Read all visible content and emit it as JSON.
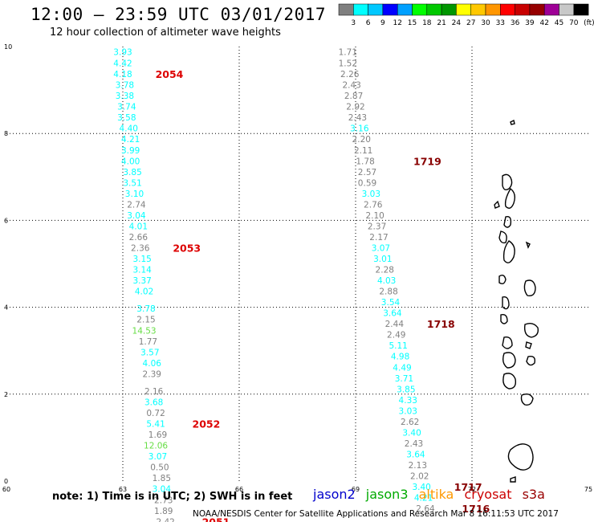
{
  "header": {
    "title": "12:00 — 23:59 UTC 03/01/2017",
    "subtitle": "12 hour collection of altimeter wave heights"
  },
  "colorbar": {
    "labels": [
      "3",
      "6",
      "9",
      "12",
      "15",
      "18",
      "21",
      "24",
      "27",
      "30",
      "33",
      "36",
      "39",
      "42",
      "45",
      "70"
    ],
    "unit": "(ft)",
    "colors": [
      "#7f7f7f",
      "#00ffff",
      "#00c8ff",
      "#0000ff",
      "#00a0ff",
      "#00ff00",
      "#00c800",
      "#009600",
      "#ffff00",
      "#ffc800",
      "#ff9600",
      "#ff0000",
      "#c80000",
      "#960000",
      "#9e0096",
      "#c8c8c8",
      "#000000"
    ]
  },
  "footer": {
    "note": "note: 1) Time is in UTC; 2) SWH is in feet",
    "credit": "NOAA/NESDIS Center for Satellite Applications and Research   Mar  8 16:11:53 UTC 2017",
    "satellites": [
      {
        "name": "jason2",
        "color": "#0000cc"
      },
      {
        "name": "jason3",
        "color": "#00aa00"
      },
      {
        "name": "altika",
        "color": "#ff9900"
      },
      {
        "name": "cryosat",
        "color": "#cc0000"
      },
      {
        "name": "s3a",
        "color": "#990000"
      }
    ]
  },
  "chart_data": {
    "type": "scatter",
    "title": "",
    "xlabel": "",
    "ylabel": "",
    "xlim": [
      60,
      75
    ],
    "ylim": [
      0,
      10
    ],
    "x_ticks": [
      60,
      63,
      66,
      69,
      72,
      75
    ],
    "y_ticks": [
      0,
      2,
      4,
      6,
      8,
      10
    ],
    "grid": true,
    "series": [
      {
        "track": "left",
        "points": [
          {
            "x": 63.0,
            "y": 9.88,
            "v": "3.93",
            "c": "#00ffff"
          },
          {
            "x": 63.0,
            "y": 9.62,
            "v": "4.42",
            "c": "#00ffff"
          },
          {
            "x": 63.0,
            "y": 9.37,
            "v": "4.18",
            "c": "#00ffff"
          },
          {
            "x": 63.05,
            "y": 9.12,
            "v": "3.78",
            "c": "#00ffff"
          },
          {
            "x": 63.05,
            "y": 8.87,
            "v": "3.38",
            "c": "#00ffff"
          },
          {
            "x": 63.1,
            "y": 8.62,
            "v": "3.74",
            "c": "#00ffff"
          },
          {
            "x": 63.1,
            "y": 8.37,
            "v": "3.58",
            "c": "#00ffff"
          },
          {
            "x": 63.15,
            "y": 8.12,
            "v": "4.40",
            "c": "#00ffff"
          },
          {
            "x": 63.2,
            "y": 7.87,
            "v": "4.21",
            "c": "#00ffff"
          },
          {
            "x": 63.2,
            "y": 7.62,
            "v": "3.99",
            "c": "#00ffff"
          },
          {
            "x": 63.2,
            "y": 7.37,
            "v": "4.00",
            "c": "#00ffff"
          },
          {
            "x": 63.25,
            "y": 7.12,
            "v": "3.85",
            "c": "#00ffff"
          },
          {
            "x": 63.25,
            "y": 6.87,
            "v": "3.51",
            "c": "#00ffff"
          },
          {
            "x": 63.3,
            "y": 6.62,
            "v": "3.10",
            "c": "#00ffff"
          },
          {
            "x": 63.35,
            "y": 6.37,
            "v": "2.74",
            "c": "#808080"
          },
          {
            "x": 63.35,
            "y": 6.12,
            "v": "3.04",
            "c": "#00ffff"
          },
          {
            "x": 63.4,
            "y": 5.87,
            "v": "4.01",
            "c": "#00ffff"
          },
          {
            "x": 63.4,
            "y": 5.62,
            "v": "2.66",
            "c": "#808080"
          },
          {
            "x": 63.45,
            "y": 5.37,
            "v": "2.36",
            "c": "#808080"
          },
          {
            "x": 63.5,
            "y": 5.12,
            "v": "3.15",
            "c": "#00ffff"
          },
          {
            "x": 63.5,
            "y": 4.87,
            "v": "3.14",
            "c": "#00ffff"
          },
          {
            "x": 63.5,
            "y": 4.62,
            "v": "3.37",
            "c": "#00ffff"
          },
          {
            "x": 63.55,
            "y": 4.37,
            "v": "4.02",
            "c": "#00ffff"
          },
          {
            "x": 63.6,
            "y": 3.97,
            "v": "3.78",
            "c": "#00ffff"
          },
          {
            "x": 63.6,
            "y": 3.72,
            "v": "2.15",
            "c": "#808080"
          },
          {
            "x": 63.55,
            "y": 3.47,
            "v": "14.53",
            "c": "#66dd44"
          },
          {
            "x": 63.65,
            "y": 3.22,
            "v": "1.77",
            "c": "#808080"
          },
          {
            "x": 63.7,
            "y": 2.97,
            "v": "3.57",
            "c": "#00ffff"
          },
          {
            "x": 63.75,
            "y": 2.72,
            "v": "4.06",
            "c": "#00ffff"
          },
          {
            "x": 63.75,
            "y": 2.47,
            "v": "2.39",
            "c": "#808080"
          },
          {
            "x": 63.8,
            "y": 2.07,
            "v": "2.16",
            "c": "#808080"
          },
          {
            "x": 63.8,
            "y": 1.82,
            "v": "3.68",
            "c": "#00ffff"
          },
          {
            "x": 63.85,
            "y": 1.57,
            "v": "0.72",
            "c": "#808080"
          },
          {
            "x": 63.85,
            "y": 1.32,
            "v": "5.41",
            "c": "#00ffff"
          },
          {
            "x": 63.9,
            "y": 1.07,
            "v": "1.69",
            "c": "#808080"
          },
          {
            "x": 63.85,
            "y": 0.82,
            "v": "12.06",
            "c": "#66dd44"
          },
          {
            "x": 63.9,
            "y": 0.57,
            "v": "3.07",
            "c": "#00ffff"
          },
          {
            "x": 63.95,
            "y": 0.32,
            "v": "0.50",
            "c": "#808080"
          },
          {
            "x": 64.0,
            "y": 0.07,
            "v": "1.85",
            "c": "#808080"
          },
          {
            "x": 64.0,
            "y": -0.18,
            "v": "3.04",
            "c": "#00ffff"
          },
          {
            "x": 64.05,
            "y": -0.43,
            "v": "2.73",
            "c": "#808080"
          },
          {
            "x": 64.05,
            "y": -0.68,
            "v": "1.89",
            "c": "#808080"
          },
          {
            "x": 64.1,
            "y": -0.93,
            "v": "2.42",
            "c": "#808080"
          }
        ],
        "times": [
          {
            "x": 64.2,
            "y": 9.37,
            "v": "2054",
            "c": "#dd0000"
          },
          {
            "x": 64.65,
            "y": 5.37,
            "v": "2053",
            "c": "#dd0000"
          },
          {
            "x": 65.15,
            "y": 1.32,
            "v": "2052",
            "c": "#dd0000"
          },
          {
            "x": 65.4,
            "y": -0.93,
            "v": "2051",
            "c": "#dd0000"
          }
        ]
      },
      {
        "track": "right",
        "points": [
          {
            "x": 68.8,
            "y": 9.88,
            "v": "1.71",
            "c": "#808080"
          },
          {
            "x": 68.8,
            "y": 9.62,
            "v": "1.52",
            "c": "#808080"
          },
          {
            "x": 68.85,
            "y": 9.37,
            "v": "2.26",
            "c": "#808080"
          },
          {
            "x": 68.9,
            "y": 9.12,
            "v": "2.43",
            "c": "#808080"
          },
          {
            "x": 68.95,
            "y": 8.87,
            "v": "2.87",
            "c": "#808080"
          },
          {
            "x": 69.0,
            "y": 8.62,
            "v": "2.92",
            "c": "#808080"
          },
          {
            "x": 69.05,
            "y": 8.37,
            "v": "2.43",
            "c": "#808080"
          },
          {
            "x": 69.1,
            "y": 8.12,
            "v": "3.16",
            "c": "#00ffff"
          },
          {
            "x": 69.15,
            "y": 7.87,
            "v": "2.20",
            "c": "#808080"
          },
          {
            "x": 69.2,
            "y": 7.62,
            "v": "2.11",
            "c": "#808080"
          },
          {
            "x": 69.25,
            "y": 7.37,
            "v": "1.78",
            "c": "#808080"
          },
          {
            "x": 69.3,
            "y": 7.12,
            "v": "2.57",
            "c": "#808080"
          },
          {
            "x": 69.3,
            "y": 6.87,
            "v": "0.59",
            "c": "#808080"
          },
          {
            "x": 69.4,
            "y": 6.62,
            "v": "3.03",
            "c": "#00ffff"
          },
          {
            "x": 69.45,
            "y": 6.37,
            "v": "2.76",
            "c": "#808080"
          },
          {
            "x": 69.5,
            "y": 6.12,
            "v": "2.10",
            "c": "#808080"
          },
          {
            "x": 69.55,
            "y": 5.87,
            "v": "2.37",
            "c": "#808080"
          },
          {
            "x": 69.6,
            "y": 5.62,
            "v": "2.17",
            "c": "#808080"
          },
          {
            "x": 69.65,
            "y": 5.37,
            "v": "3.07",
            "c": "#00ffff"
          },
          {
            "x": 69.7,
            "y": 5.12,
            "v": "3.01",
            "c": "#00ffff"
          },
          {
            "x": 69.75,
            "y": 4.87,
            "v": "2.28",
            "c": "#808080"
          },
          {
            "x": 69.8,
            "y": 4.62,
            "v": "4.03",
            "c": "#00ffff"
          },
          {
            "x": 69.85,
            "y": 4.37,
            "v": "2.88",
            "c": "#808080"
          },
          {
            "x": 69.9,
            "y": 4.12,
            "v": "3.54",
            "c": "#00ffff"
          },
          {
            "x": 69.95,
            "y": 3.87,
            "v": "3.64",
            "c": "#00ffff"
          },
          {
            "x": 70.0,
            "y": 3.62,
            "v": "2.44",
            "c": "#808080"
          },
          {
            "x": 70.05,
            "y": 3.37,
            "v": "2.49",
            "c": "#808080"
          },
          {
            "x": 70.1,
            "y": 3.12,
            "v": "5.11",
            "c": "#00ffff"
          },
          {
            "x": 70.15,
            "y": 2.87,
            "v": "4.98",
            "c": "#00ffff"
          },
          {
            "x": 70.2,
            "y": 2.62,
            "v": "4.49",
            "c": "#00ffff"
          },
          {
            "x": 70.25,
            "y": 2.37,
            "v": "3.71",
            "c": "#00ffff"
          },
          {
            "x": 70.3,
            "y": 2.12,
            "v": "3.85",
            "c": "#00ffff"
          },
          {
            "x": 70.35,
            "y": 1.87,
            "v": "4.33",
            "c": "#00ffff"
          },
          {
            "x": 70.35,
            "y": 1.62,
            "v": "3.03",
            "c": "#00ffff"
          },
          {
            "x": 70.4,
            "y": 1.37,
            "v": "2.62",
            "c": "#808080"
          },
          {
            "x": 70.45,
            "y": 1.12,
            "v": "3.40",
            "c": "#00ffff"
          },
          {
            "x": 70.5,
            "y": 0.87,
            "v": "2.43",
            "c": "#808080"
          },
          {
            "x": 70.55,
            "y": 0.62,
            "v": "3.64",
            "c": "#00ffff"
          },
          {
            "x": 70.6,
            "y": 0.37,
            "v": "2.13",
            "c": "#808080"
          },
          {
            "x": 70.65,
            "y": 0.12,
            "v": "2.02",
            "c": "#808080"
          },
          {
            "x": 70.7,
            "y": -0.13,
            "v": "3.40",
            "c": "#00ffff"
          },
          {
            "x": 70.75,
            "y": -0.38,
            "v": "4.21",
            "c": "#00ffff"
          },
          {
            "x": 70.8,
            "y": -0.63,
            "v": "2.64",
            "c": "#808080"
          }
        ],
        "times": [
          {
            "x": 70.85,
            "y": 7.37,
            "v": "1719",
            "c": "#880000"
          },
          {
            "x": 71.2,
            "y": 3.62,
            "v": "1718",
            "c": "#880000"
          },
          {
            "x": 71.9,
            "y": -0.13,
            "v": "1717",
            "c": "#880000"
          },
          {
            "x": 72.1,
            "y": -0.63,
            "v": "1716",
            "c": "#880000"
          }
        ]
      }
    ]
  }
}
